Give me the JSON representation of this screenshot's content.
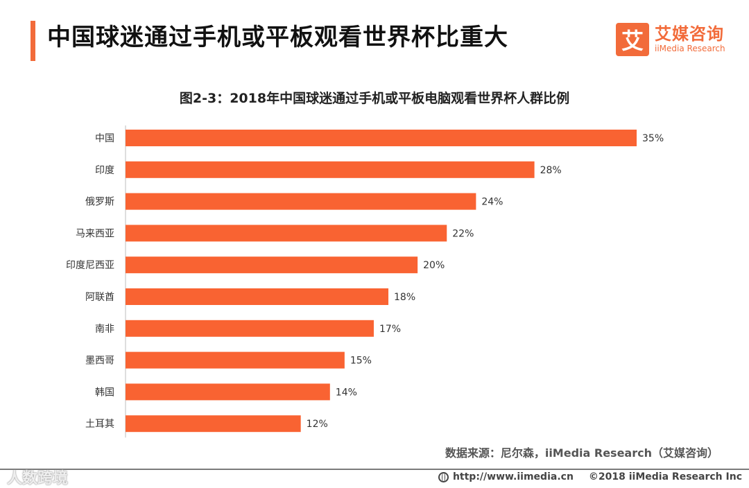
{
  "header": {
    "title": "中国球迷通过手机或平板观看世界杯比重大",
    "accent_color": "#f26b3a"
  },
  "logo": {
    "mark": "艾",
    "name_cn": "艾媒咨询",
    "name_en": "iiMedia Research"
  },
  "chart_data": {
    "type": "bar",
    "orientation": "horizontal",
    "title": "图2-3：2018年中国球迷通过手机或平板电脑观看世界杯人群比例",
    "categories": [
      "中国",
      "印度",
      "俄罗斯",
      "马来西亚",
      "印度尼西亚",
      "阿联酋",
      "南非",
      "墨西哥",
      "韩国",
      "土耳其"
    ],
    "values": [
      35,
      28,
      24,
      22,
      20,
      18,
      17,
      15,
      14,
      12
    ],
    "value_labels": [
      "35%",
      "28%",
      "24%",
      "22%",
      "20%",
      "18%",
      "17%",
      "15%",
      "14%",
      "12%"
    ],
    "unit": "%",
    "xlim": [
      0,
      35
    ],
    "bar_color": "#f96332",
    "grid": false,
    "xlabel": "",
    "ylabel": ""
  },
  "source": "数据来源：尼尔森，iiMedia Research（艾媒咨询）",
  "watermark": "人数跨境",
  "footer": {
    "url": "http://www.iimedia.cn",
    "copyright": "©2018  iiMedia Research  Inc"
  }
}
